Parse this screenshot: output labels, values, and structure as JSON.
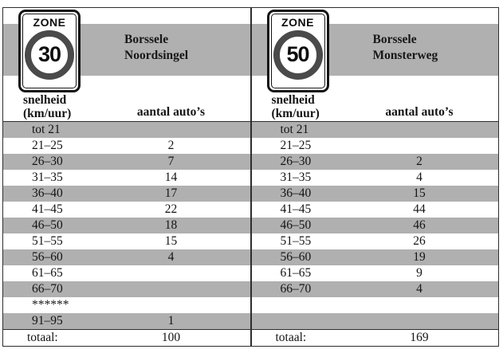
{
  "colors": {
    "stripe_gray": "#b0b0b0",
    "line_dark": "#2e2e2e",
    "sign_ring_gray": "#4a4a4a",
    "text": "#141414"
  },
  "panels": [
    {
      "sign": {
        "zone_label": "ZONE",
        "speed": "30"
      },
      "location": {
        "line1": "Borssele",
        "line2": "Noordsingel"
      },
      "columns": {
        "speed_header_line1": "snelheid",
        "speed_header_line2": "(km/uur)",
        "count_header": "aantal auto’s"
      },
      "rows": [
        {
          "label": "tot 21",
          "value": ""
        },
        {
          "label": "21–25",
          "value": "2"
        },
        {
          "label": "26–30",
          "value": "7"
        },
        {
          "label": "31–35",
          "value": "14"
        },
        {
          "label": "36–40",
          "value": "17"
        },
        {
          "label": "41–45",
          "value": "22"
        },
        {
          "label": "46–50",
          "value": "18"
        },
        {
          "label": "51–55",
          "value": "15"
        },
        {
          "label": "56–60",
          "value": "4"
        },
        {
          "label": "61–65",
          "value": ""
        },
        {
          "label": "66–70",
          "value": ""
        },
        {
          "label": "******",
          "value": ""
        },
        {
          "label": "91–95",
          "value": "1"
        }
      ],
      "total": {
        "label": "totaal:",
        "value": "100"
      }
    },
    {
      "sign": {
        "zone_label": "ZONE",
        "speed": "50"
      },
      "location": {
        "line1": "Borssele",
        "line2": "Monsterweg"
      },
      "columns": {
        "speed_header_line1": "snelheid",
        "speed_header_line2": "(km/uur)",
        "count_header": "aantal auto’s"
      },
      "rows": [
        {
          "label": "tot 21",
          "value": ""
        },
        {
          "label": "21–25",
          "value": ""
        },
        {
          "label": "26–30",
          "value": "2"
        },
        {
          "label": "31–35",
          "value": "4"
        },
        {
          "label": "36–40",
          "value": "15"
        },
        {
          "label": "41–45",
          "value": "44"
        },
        {
          "label": "46–50",
          "value": "46"
        },
        {
          "label": "51–55",
          "value": "26"
        },
        {
          "label": "56–60",
          "value": "19"
        },
        {
          "label": "61–65",
          "value": "9"
        },
        {
          "label": "66–70",
          "value": "4"
        },
        {
          "label": "",
          "value": ""
        },
        {
          "label": "",
          "value": ""
        }
      ],
      "total": {
        "label": "totaal:",
        "value": "169"
      }
    }
  ]
}
